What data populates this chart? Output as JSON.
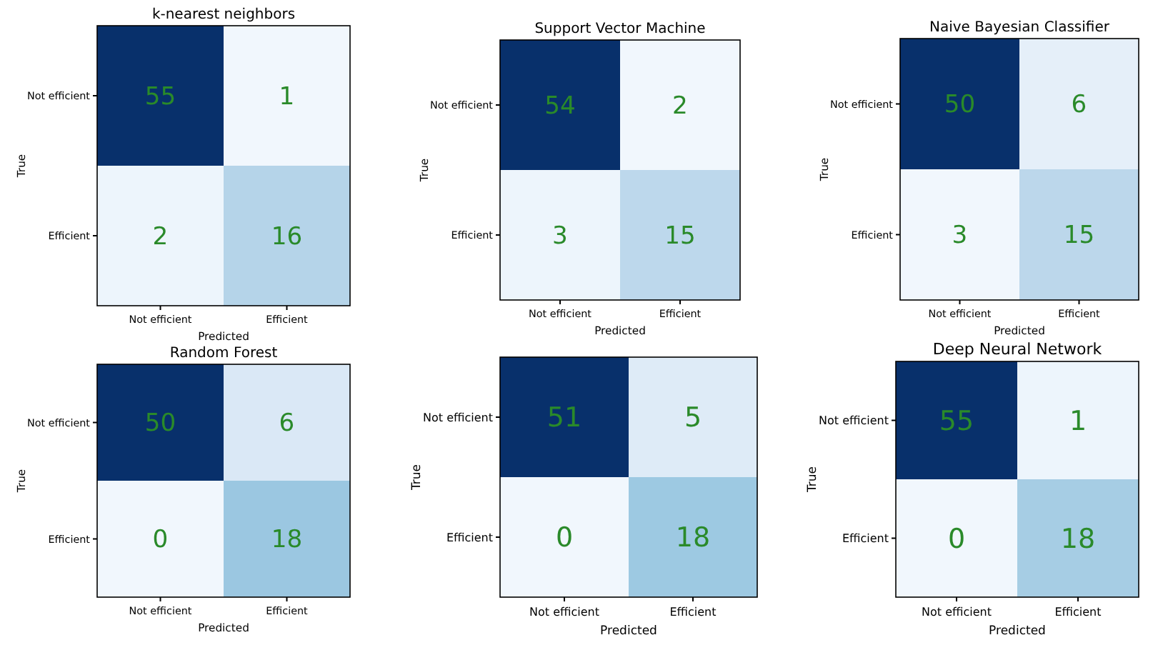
{
  "chart_data": [
    {
      "type": "heatmap",
      "title": "k-nearest neighbors",
      "categories": [
        "Not efficient",
        "Efficient"
      ],
      "y_categories": [
        "Not efficient",
        "Efficient"
      ],
      "cells": [
        [
          55,
          1
        ],
        [
          2,
          16
        ]
      ],
      "xlabel": "Predicted",
      "ylabel": "True",
      "data_labels": true
    },
    {
      "type": "heatmap",
      "title": "Support Vector Machine",
      "categories": [
        "Not efficient",
        "Efficient"
      ],
      "y_categories": [
        "Not efficient",
        "Efficient"
      ],
      "cells": [
        [
          54,
          2
        ],
        [
          3,
          15
        ]
      ],
      "xlabel": "Predicted",
      "ylabel": "True",
      "data_labels": true
    },
    {
      "type": "heatmap",
      "title": "Naive Bayesian Classifier",
      "categories": [
        "Not efficient",
        "Efficient"
      ],
      "y_categories": [
        "Not efficient",
        "Efficient"
      ],
      "cells": [
        [
          50,
          6
        ],
        [
          3,
          15
        ]
      ],
      "xlabel": "Predicted",
      "ylabel": "True",
      "data_labels": true
    },
    {
      "type": "heatmap",
      "title": "Random Forest",
      "categories": [
        "Not efficient",
        "Efficient"
      ],
      "y_categories": [
        "Not efficient",
        "Efficient"
      ],
      "cells": [
        [
          50,
          6
        ],
        [
          0,
          18
        ]
      ],
      "xlabel": "Predicted",
      "ylabel": "True",
      "data_labels": true
    },
    {
      "type": "heatmap",
      "categories": [
        "Not efficient",
        "Efficient"
      ],
      "y_categories": [
        "Not efficient",
        "Efficient"
      ],
      "cells": [
        [
          51,
          5
        ],
        [
          0,
          18
        ]
      ],
      "xlabel": "Predicted",
      "ylabel": "True",
      "data_labels": true
    },
    {
      "type": "heatmap",
      "title": "Deep Neural Network",
      "categories": [
        "Not efficient",
        "Efficient"
      ],
      "y_categories": [
        "Not efficient",
        "Efficient"
      ],
      "cells": [
        [
          55,
          1
        ],
        [
          0,
          18
        ]
      ],
      "xlabel": "Predicted",
      "ylabel": "True",
      "data_labels": true
    }
  ]
}
